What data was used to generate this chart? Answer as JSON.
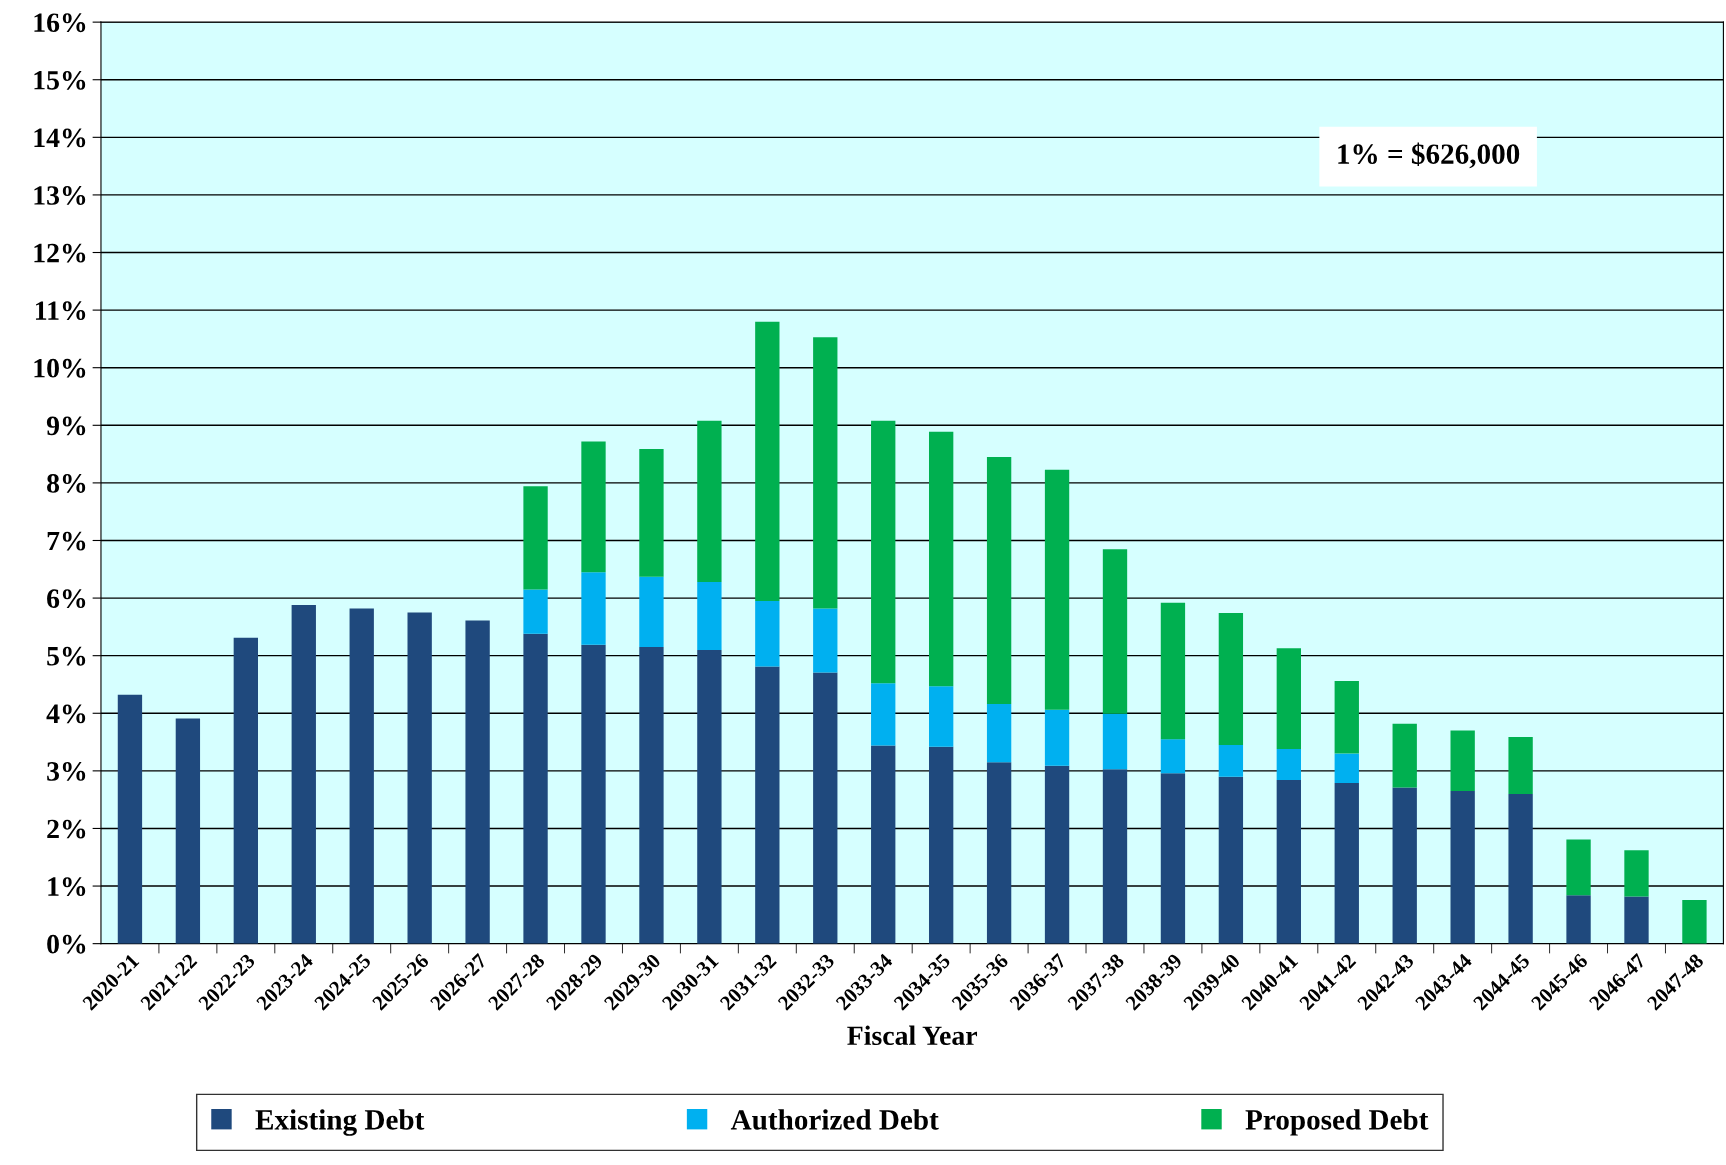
{
  "chart_data": {
    "type": "bar",
    "stacked": true,
    "xlabel": "Fiscal Year",
    "categories": [
      "2020-21",
      "2021-22",
      "2022-23",
      "2023-24",
      "2024-25",
      "2025-26",
      "2026-27",
      "2027-28",
      "2028-29",
      "2029-30",
      "2030-31",
      "2031-32",
      "2032-33",
      "2033-34",
      "2034-35",
      "2035-36",
      "2036-37",
      "2037-38",
      "2038-39",
      "2039-40",
      "2040-41",
      "2041-42",
      "2042-43",
      "2043-44",
      "2044-45",
      "2045-46",
      "2046-47",
      "2047-48"
    ],
    "series": [
      {
        "name": "Existing Debt",
        "color": "#1f497d",
        "values": [
          4.32,
          3.91,
          5.31,
          5.88,
          5.82,
          5.75,
          5.61,
          5.38,
          5.19,
          5.15,
          5.1,
          4.81,
          4.71,
          3.44,
          3.42,
          3.15,
          3.09,
          3.03,
          2.96,
          2.9,
          2.84,
          2.79,
          2.71,
          2.65,
          2.6,
          0.84,
          0.82,
          null
        ]
      },
      {
        "name": "Authorized Debt",
        "color": "#00b0f0",
        "values": [
          null,
          null,
          null,
          null,
          null,
          null,
          null,
          0.77,
          1.26,
          1.22,
          1.18,
          1.14,
          1.11,
          1.08,
          1.05,
          1.01,
          0.97,
          0.96,
          0.59,
          0.55,
          0.54,
          0.51,
          null,
          null,
          null,
          null,
          null,
          null
        ]
      },
      {
        "name": "Proposed Debt",
        "color": "#00b050",
        "values": [
          null,
          null,
          null,
          null,
          null,
          null,
          null,
          1.79,
          2.27,
          2.22,
          2.8,
          4.85,
          4.71,
          4.56,
          4.42,
          4.29,
          4.17,
          2.86,
          2.37,
          2.29,
          1.75,
          1.26,
          1.11,
          1.05,
          0.99,
          0.97,
          0.8,
          0.76
        ]
      }
    ],
    "ylim": [
      0,
      16
    ],
    "yticks": [
      {
        "value": 0,
        "label": "0%"
      },
      {
        "value": 1,
        "label": "1%"
      },
      {
        "value": 2,
        "label": "2%"
      },
      {
        "value": 3,
        "label": "3%"
      },
      {
        "value": 4,
        "label": "4%"
      },
      {
        "value": 5,
        "label": "5%"
      },
      {
        "value": 6,
        "label": "6%"
      },
      {
        "value": 7,
        "label": "7%"
      },
      {
        "value": 8,
        "label": "8%"
      },
      {
        "value": 9,
        "label": "9%"
      },
      {
        "value": 10,
        "label": "10%"
      },
      {
        "value": 11,
        "label": "11%"
      },
      {
        "value": 12,
        "label": "12%"
      },
      {
        "value": 13,
        "label": "13%"
      },
      {
        "value": 14,
        "label": "14%"
      },
      {
        "value": 15,
        "label": "15%"
      },
      {
        "value": 16,
        "label": "16%"
      }
    ],
    "grid": "y",
    "legend": "bottom",
    "annotations": [
      "1% = $626,000"
    ]
  }
}
